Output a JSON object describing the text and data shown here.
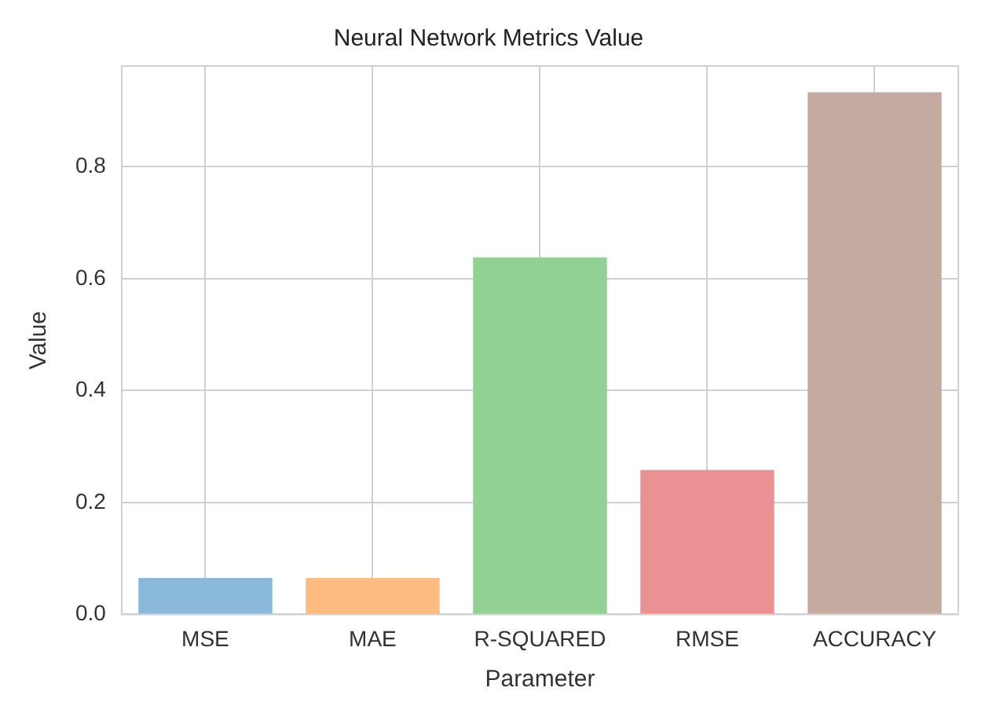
{
  "chart_data": {
    "type": "bar",
    "title": "Neural Network Metrics Value",
    "xlabel": "Parameter",
    "ylabel": "Value",
    "categories": [
      "MSE",
      "MAE",
      "R-SQUARED",
      "RMSE",
      "ACCURACY"
    ],
    "values": [
      0.065,
      0.065,
      0.638,
      0.258,
      0.933
    ],
    "colors": [
      "#8ab8d9",
      "#ffbb7f",
      "#93d093",
      "#ea9293",
      "#c5aaa2"
    ],
    "ylim": [
      0,
      0.98
    ],
    "yticks": [
      {
        "value": 0,
        "label": "0.0"
      },
      0.2,
      0.4,
      0.6,
      0.8
    ],
    "grid": true
  }
}
